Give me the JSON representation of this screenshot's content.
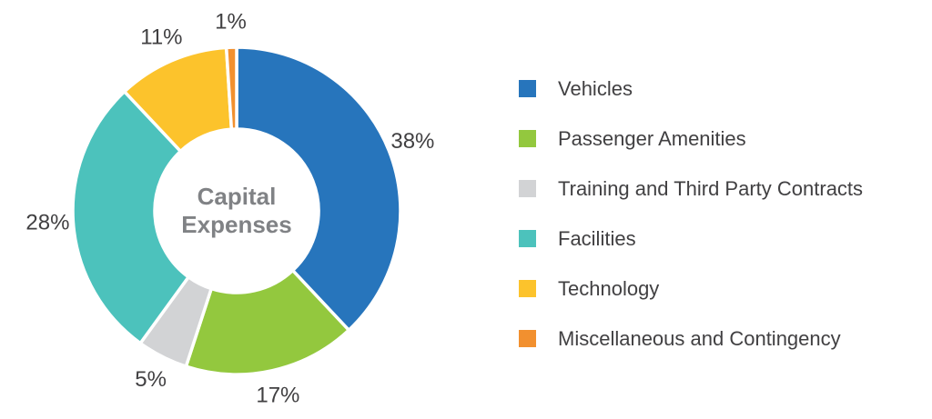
{
  "chart_data": {
    "type": "pie",
    "subtype": "donut",
    "title": "Capital Expenses",
    "center_label_lines": [
      "Capital",
      "Expenses"
    ],
    "legend_position": "right",
    "grid": false,
    "units": "%",
    "segments": [
      {
        "label": "Vehicles",
        "value": 38,
        "display": "38%",
        "color": "#2775bc"
      },
      {
        "label": "Passenger Amenities",
        "value": 17,
        "display": "17%",
        "color": "#93c83e"
      },
      {
        "label": "Training and Third Party Contracts",
        "value": 5,
        "display": "5%",
        "color": "#d2d3d5"
      },
      {
        "label": "Facilities",
        "value": 28,
        "display": "28%",
        "color": "#4cc2bc"
      },
      {
        "label": "Technology",
        "value": 11,
        "display": "11%",
        "color": "#fcc32c"
      },
      {
        "label": "Miscellaneous and Contingency",
        "value": 1,
        "display": "1%",
        "color": "#f2902f"
      }
    ],
    "colors": {
      "percent_label_text": "#414042",
      "center_label_text": "#808285",
      "legend_text": "#414042",
      "segment_gap": "#ffffff",
      "background": "#ffffff"
    }
  }
}
